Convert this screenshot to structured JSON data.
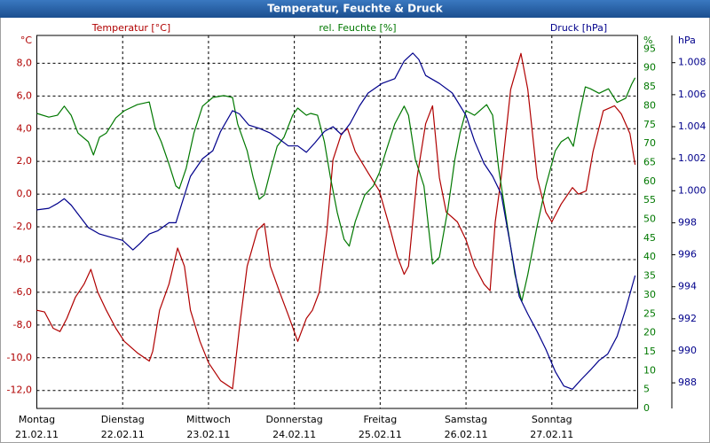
{
  "chart_data": {
    "type": "line",
    "title": "Temperatur, Feuchte & Druck",
    "xlim": [
      0,
      7
    ],
    "xticks": [
      0,
      1,
      2,
      3,
      4,
      5,
      6
    ],
    "xtick_days": [
      "Montag",
      "Dienstag",
      "Mittwoch",
      "Donnerstag",
      "Freitag",
      "Samstag",
      "Sonntag"
    ],
    "xtick_dates": [
      "21.02.11",
      "22.02.11",
      "23.02.11",
      "24.02.11",
      "25.02.11",
      "26.02.11",
      "27.02.11"
    ],
    "grid": true,
    "ylabel": "°C",
    "ylim": [
      -13.1,
      9.7
    ],
    "yticks": [
      {
        "value": -12,
        "label": "-12,0"
      },
      {
        "value": -10,
        "label": "-10,0"
      },
      {
        "value": -8,
        "label": "-8,0"
      },
      {
        "value": -6,
        "label": "-6,0"
      },
      {
        "value": -4,
        "label": "-4,0"
      },
      {
        "value": -2,
        "label": "-2,0"
      },
      {
        "value": 0,
        "label": "0,0"
      },
      {
        "value": 2,
        "label": "2,0"
      },
      {
        "value": 4,
        "label": "4,0"
      },
      {
        "value": 6,
        "label": "6,0"
      },
      {
        "value": 8,
        "label": "8,0"
      }
    ],
    "y2label": "%",
    "y2lim": [
      0,
      98.6
    ],
    "y2ticks": [
      0,
      5,
      10,
      15,
      20,
      25,
      30,
      35,
      40,
      45,
      50,
      55,
      60,
      65,
      70,
      75,
      80,
      85,
      90,
      95
    ],
    "y3label": "hPa",
    "y3lim": [
      986.4,
      1009.7
    ],
    "y3ticks": [
      988,
      990,
      992,
      994,
      996,
      998,
      {
        "value": 1000,
        "label": "1.000"
      },
      {
        "value": 1002,
        "label": "1.002"
      },
      {
        "value": 1004,
        "label": "1.004"
      },
      {
        "value": 1006,
        "label": "1.006"
      },
      {
        "value": 1008,
        "label": "1.008"
      }
    ],
    "series": [
      {
        "name": "Temperatur [°C]",
        "color": "#b00000",
        "axis": "y",
        "x": [
          0,
          0.09,
          0.19,
          0.27,
          0.35,
          0.45,
          0.55,
          0.63,
          0.71,
          0.81,
          0.92,
          1.02,
          1.17,
          1.31,
          1.35,
          1.43,
          1.54,
          1.64,
          1.72,
          1.79,
          1.9,
          2.0,
          2.14,
          2.28,
          2.36,
          2.45,
          2.57,
          2.65,
          2.72,
          2.83,
          2.93,
          3.04,
          3.14,
          3.21,
          3.29,
          3.38,
          3.45,
          3.55,
          3.62,
          3.71,
          3.86,
          3.99,
          4.12,
          4.2,
          4.28,
          4.33,
          4.43,
          4.53,
          4.61,
          4.69,
          4.77,
          4.9,
          5.0,
          5.1,
          5.21,
          5.28,
          5.34,
          5.41,
          5.52,
          5.64,
          5.72,
          5.83,
          5.93,
          6.0,
          6.11,
          6.24,
          6.31,
          6.4,
          6.48,
          6.6,
          6.73,
          6.81,
          6.91,
          6.97
        ],
        "values": [
          -7.1,
          -7.2,
          -8.2,
          -8.4,
          -7.6,
          -6.3,
          -5.5,
          -4.6,
          -6.0,
          -7.1,
          -8.2,
          -9.0,
          -9.7,
          -10.2,
          -9.6,
          -7.1,
          -5.5,
          -3.3,
          -4.4,
          -7.1,
          -9.0,
          -10.3,
          -11.4,
          -11.9,
          -8.2,
          -4.4,
          -2.2,
          -1.8,
          -4.4,
          -6.0,
          -7.4,
          -9.0,
          -7.6,
          -7.1,
          -6.0,
          -2.2,
          2.1,
          3.7,
          4.0,
          2.6,
          1.3,
          0.2,
          -2.2,
          -3.8,
          -4.9,
          -4.4,
          1.0,
          4.3,
          5.4,
          1.0,
          -1.1,
          -1.7,
          -2.8,
          -4.4,
          -5.5,
          -5.9,
          -1.7,
          1.0,
          6.4,
          8.6,
          6.4,
          1.0,
          -1.1,
          -1.7,
          -0.6,
          0.4,
          0.0,
          0.2,
          2.6,
          5.1,
          5.4,
          4.9,
          3.7,
          1.8
        ]
      },
      {
        "name": "rel. Feuchte [%]",
        "color": "#007800",
        "axis": "y2",
        "x": [
          0,
          0.14,
          0.24,
          0.32,
          0.4,
          0.48,
          0.6,
          0.66,
          0.73,
          0.81,
          0.92,
          1.02,
          1.17,
          1.31,
          1.38,
          1.45,
          1.54,
          1.62,
          1.66,
          1.74,
          1.83,
          1.93,
          2.05,
          2.18,
          2.28,
          2.34,
          2.45,
          2.52,
          2.59,
          2.65,
          2.73,
          2.8,
          2.88,
          2.98,
          3.04,
          3.14,
          3.19,
          3.27,
          3.35,
          3.42,
          3.5,
          3.58,
          3.64,
          3.71,
          3.82,
          3.92,
          3.99,
          4.07,
          4.17,
          4.28,
          4.33,
          4.41,
          4.51,
          4.61,
          4.69,
          4.79,
          4.87,
          4.93,
          5.0,
          5.1,
          5.24,
          5.31,
          5.38,
          5.49,
          5.57,
          5.65,
          5.72,
          5.83,
          5.93,
          6.04,
          6.11,
          6.19,
          6.25,
          6.32,
          6.39,
          6.45,
          6.55,
          6.66,
          6.76,
          6.86,
          6.93,
          6.97
        ],
        "values": [
          78.0,
          77.0,
          77.5,
          79.9,
          77.5,
          72.8,
          70.5,
          67.0,
          71.7,
          72.8,
          76.8,
          78.7,
          80.3,
          81.0,
          74.0,
          70.5,
          64.6,
          58.8,
          58.1,
          63.5,
          72.8,
          79.9,
          82.2,
          82.7,
          82.2,
          75.2,
          68.1,
          61.1,
          55.3,
          56.4,
          63.5,
          69.3,
          71.7,
          77.5,
          79.4,
          77.5,
          78.0,
          77.5,
          70.5,
          61.1,
          51.8,
          44.7,
          42.9,
          49.4,
          56.4,
          58.8,
          62.3,
          68.1,
          75.2,
          79.9,
          77.5,
          65.8,
          58.8,
          38.2,
          40.0,
          52.9,
          65.8,
          72.8,
          78.7,
          77.5,
          80.3,
          77.5,
          63.5,
          47.1,
          35.4,
          28.3,
          35.4,
          48.3,
          58.8,
          68.1,
          70.5,
          71.7,
          69.3,
          77.5,
          85.0,
          84.5,
          83.3,
          84.5,
          80.9,
          82.0,
          85.7,
          87.4
        ]
      },
      {
        "name": "Druck [hPa]",
        "color": "#00008b",
        "axis": "y3",
        "x": [
          0,
          0.14,
          0.24,
          0.32,
          0.4,
          0.5,
          0.6,
          0.73,
          0.86,
          1.0,
          1.12,
          1.2,
          1.31,
          1.41,
          1.54,
          1.62,
          1.69,
          1.79,
          1.93,
          2.05,
          2.14,
          2.28,
          2.36,
          2.47,
          2.59,
          2.72,
          2.83,
          2.93,
          3.04,
          3.14,
          3.24,
          3.35,
          3.45,
          3.55,
          3.65,
          3.76,
          3.86,
          4.02,
          4.17,
          4.28,
          4.38,
          4.45,
          4.53,
          4.69,
          4.84,
          5.0,
          5.1,
          5.21,
          5.31,
          5.41,
          5.52,
          5.62,
          5.72,
          5.83,
          5.93,
          6.04,
          6.14,
          6.24,
          6.34,
          6.45,
          6.55,
          6.65,
          6.76,
          6.86,
          6.97
        ],
        "values": [
          998.8,
          998.9,
          999.2,
          999.5,
          999.1,
          998.4,
          997.7,
          997.3,
          997.1,
          996.9,
          996.3,
          996.7,
          997.3,
          997.5,
          998.0,
          998.0,
          999.2,
          1000.9,
          1002.0,
          1002.5,
          1003.7,
          1005.0,
          1004.8,
          1004.1,
          1003.9,
          1003.6,
          1003.2,
          1002.8,
          1002.8,
          1002.4,
          1003.0,
          1003.7,
          1004.0,
          1003.5,
          1004.2,
          1005.3,
          1006.1,
          1006.7,
          1007.0,
          1008.1,
          1008.6,
          1008.2,
          1007.2,
          1006.7,
          1006.1,
          1004.7,
          1003.1,
          1001.7,
          1000.9,
          999.8,
          996.5,
          993.4,
          992.3,
          991.2,
          990.1,
          988.7,
          987.8,
          987.6,
          988.2,
          988.8,
          989.4,
          989.8,
          990.9,
          992.6,
          994.7
        ]
      }
    ]
  }
}
